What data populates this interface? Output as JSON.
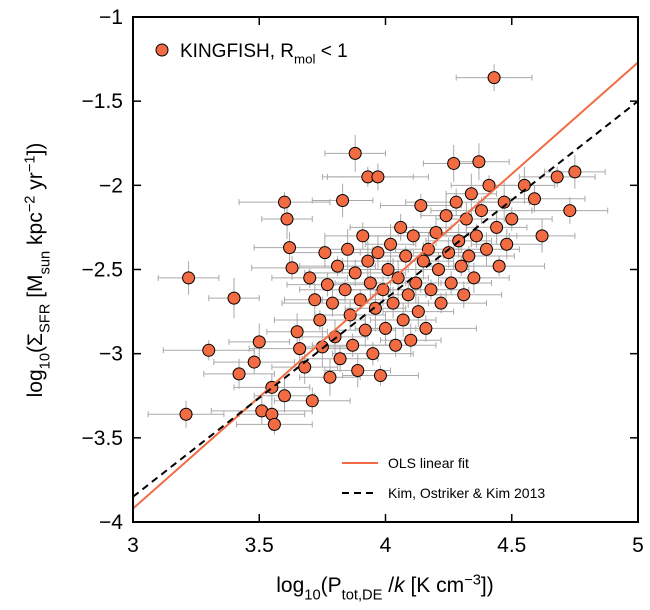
{
  "chart_data": {
    "type": "scatter",
    "x_label": [
      "log",
      "10",
      "(P",
      "tot,DE",
      " /",
      "k",
      " [K cm",
      "−3",
      "])"
    ],
    "y_label": [
      "log",
      "10",
      "(Σ",
      "SFR",
      " [M",
      "sun",
      " kpc",
      "−2",
      " yr",
      "−1",
      "])"
    ],
    "xlim": [
      3,
      5
    ],
    "ylim": [
      -4,
      -1
    ],
    "xticks": [
      3,
      3.5,
      4,
      4.5,
      5
    ],
    "yticks": [
      {
        "value": -4,
        "label": "−4"
      },
      {
        "value": -3.5,
        "label": "−3.5"
      },
      {
        "value": -3,
        "label": "−3"
      },
      {
        "value": -2.5,
        "label": "−2.5"
      },
      {
        "value": -2,
        "label": "−2"
      },
      {
        "value": -1.5,
        "label": "−1.5"
      },
      {
        "value": -1,
        "label": "−1"
      }
    ],
    "series": [
      {
        "name": [
          "KINGFISH, R",
          "mol",
          " < 1"
        ],
        "color": "#f26b43",
        "errcolor": "#aaaaaa",
        "x": [
          3.21,
          3.22,
          3.3,
          3.4,
          3.42,
          3.48,
          3.5,
          3.51,
          3.55,
          3.56,
          3.55,
          3.6,
          3.6,
          3.61,
          3.62,
          3.63,
          3.65,
          3.66,
          3.68,
          3.7,
          3.71,
          3.72,
          3.74,
          3.75,
          3.76,
          3.77,
          3.78,
          3.79,
          3.8,
          3.81,
          3.82,
          3.83,
          3.84,
          3.85,
          3.86,
          3.87,
          3.88,
          3.88,
          3.89,
          3.9,
          3.91,
          3.92,
          3.93,
          3.93,
          3.94,
          3.95,
          3.96,
          3.97,
          3.97,
          3.98,
          3.99,
          4.0,
          4.01,
          4.02,
          4.03,
          4.04,
          4.05,
          4.06,
          4.07,
          4.08,
          4.09,
          4.1,
          4.11,
          4.12,
          4.13,
          4.14,
          4.15,
          4.16,
          4.17,
          4.18,
          4.2,
          4.21,
          4.22,
          4.24,
          4.25,
          4.26,
          4.27,
          4.28,
          4.29,
          4.3,
          4.31,
          4.32,
          4.33,
          4.34,
          4.35,
          4.36,
          4.37,
          4.38,
          4.4,
          4.41,
          4.43,
          4.44,
          4.45,
          4.47,
          4.48,
          4.5,
          4.55,
          4.59,
          4.62,
          4.68,
          4.73,
          4.75
        ],
        "values": [
          -3.36,
          -2.55,
          -2.98,
          -2.67,
          -3.12,
          -3.05,
          -2.93,
          -3.34,
          -3.36,
          -3.42,
          -3.2,
          -3.25,
          -2.1,
          -2.2,
          -2.37,
          -2.49,
          -2.87,
          -2.97,
          -3.08,
          -2.55,
          -3.28,
          -2.68,
          -2.8,
          -2.96,
          -2.4,
          -2.59,
          -3.14,
          -2.7,
          -2.9,
          -2.48,
          -3.03,
          -2.09,
          -2.62,
          -2.38,
          -2.77,
          -2.95,
          -1.81,
          -2.52,
          -3.1,
          -2.68,
          -2.3,
          -2.86,
          -1.95,
          -2.45,
          -2.58,
          -3.0,
          -2.73,
          -1.95,
          -2.4,
          -3.13,
          -2.62,
          -2.85,
          -2.5,
          -2.35,
          -2.7,
          -2.95,
          -2.55,
          -2.25,
          -2.8,
          -2.42,
          -2.65,
          -2.92,
          -2.3,
          -2.58,
          -2.75,
          -2.12,
          -2.45,
          -2.85,
          -2.38,
          -2.62,
          -2.28,
          -2.5,
          -2.7,
          -2.18,
          -2.4,
          -2.58,
          -1.87,
          -2.1,
          -2.33,
          -2.48,
          -2.65,
          -2.2,
          -2.42,
          -2.05,
          -2.55,
          -2.3,
          -1.86,
          -2.15,
          -2.38,
          -2.0,
          -1.36,
          -2.25,
          -2.48,
          -2.1,
          -2.35,
          -2.2,
          -2.0,
          -2.08,
          -2.3,
          -1.95,
          -2.15,
          -1.92
        ],
        "xerr": [
          0.15,
          0.12,
          0.18,
          0.1,
          0.14,
          0.16,
          0.12,
          0.2,
          0.13,
          0.15,
          0.15,
          0.12,
          0.18,
          0.1,
          0.14,
          0.16,
          0.12,
          0.2,
          0.13,
          0.15,
          0.15,
          0.12,
          0.18,
          0.1,
          0.14,
          0.16,
          0.12,
          0.2,
          0.13,
          0.15,
          0.15,
          0.12,
          0.18,
          0.1,
          0.14,
          0.16,
          0.12,
          0.2,
          0.13,
          0.15,
          0.15,
          0.12,
          0.18,
          0.1,
          0.14,
          0.16,
          0.12,
          0.2,
          0.13,
          0.15,
          0.15,
          0.12,
          0.18,
          0.1,
          0.14,
          0.16,
          0.12,
          0.2,
          0.13,
          0.15,
          0.15,
          0.12,
          0.18,
          0.1,
          0.14,
          0.16,
          0.12,
          0.2,
          0.13,
          0.15,
          0.15,
          0.12,
          0.18,
          0.1,
          0.14,
          0.16,
          0.12,
          0.2,
          0.13,
          0.15,
          0.15,
          0.12,
          0.18,
          0.1,
          0.14,
          0.16,
          0.12,
          0.2,
          0.13,
          0.15,
          0.15,
          0.12,
          0.18,
          0.1,
          0.14,
          0.16,
          0.12,
          0.2,
          0.13,
          0.15,
          0.15,
          0.12
        ],
        "yerr": [
          0.08,
          0.1,
          0.06,
          0.12,
          0.09,
          0.07,
          0.11,
          0.08,
          0.1,
          0.06,
          0.08,
          0.1,
          0.06,
          0.12,
          0.09,
          0.07,
          0.11,
          0.08,
          0.1,
          0.06,
          0.08,
          0.1,
          0.06,
          0.12,
          0.09,
          0.07,
          0.11,
          0.08,
          0.1,
          0.06,
          0.08,
          0.1,
          0.06,
          0.12,
          0.09,
          0.07,
          0.11,
          0.08,
          0.1,
          0.06,
          0.08,
          0.1,
          0.06,
          0.12,
          0.09,
          0.07,
          0.11,
          0.08,
          0.1,
          0.06,
          0.08,
          0.1,
          0.06,
          0.12,
          0.09,
          0.07,
          0.11,
          0.08,
          0.1,
          0.06,
          0.08,
          0.1,
          0.06,
          0.12,
          0.09,
          0.07,
          0.11,
          0.08,
          0.1,
          0.06,
          0.08,
          0.1,
          0.06,
          0.12,
          0.09,
          0.07,
          0.11,
          0.08,
          0.1,
          0.06,
          0.08,
          0.1,
          0.06,
          0.12,
          0.09,
          0.07,
          0.11,
          0.08,
          0.1,
          0.06,
          0.08,
          0.1,
          0.06,
          0.12,
          0.09,
          0.07,
          0.11,
          0.08,
          0.1,
          0.06,
          0.08,
          0.1
        ]
      },
      {
        "type": "line",
        "name": "OLS linear fit",
        "color": "#f26b43",
        "x": [
          3,
          5
        ],
        "values": [
          -3.92,
          -1.27
        ]
      },
      {
        "type": "line",
        "name": "Kim, Ostriker & Kim 2013",
        "color": "#000000",
        "dashed": true,
        "x": [
          3,
          5
        ],
        "values": [
          -3.85,
          -1.5
        ]
      }
    ]
  }
}
